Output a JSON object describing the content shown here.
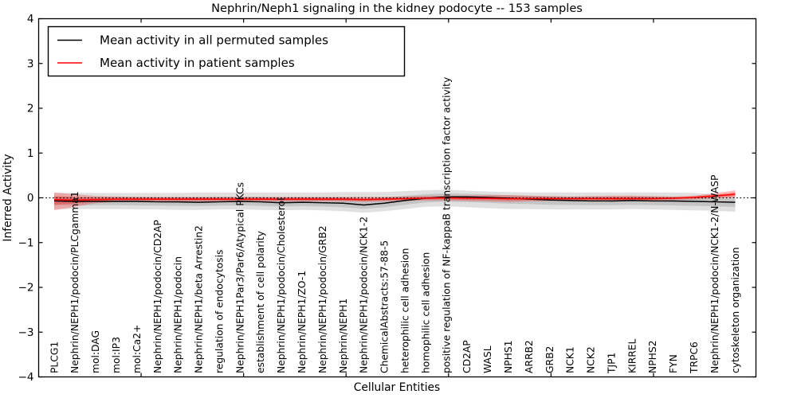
{
  "colors": {
    "background": "#ffffff",
    "frame": "#000000",
    "zero_line": "#000000",
    "permuted_line": "#000000",
    "patient_line": "#ff0000"
  },
  "chart_data": {
    "type": "line",
    "title": "Nephrin/Neph1 signaling in the kidney podocyte -- 153 samples",
    "xlabel": "Cellular Entities",
    "ylabel": "Inferred Activity",
    "ylim": [
      -4,
      4
    ],
    "yticks": [
      -4,
      -3,
      -2,
      -1,
      0,
      1,
      2,
      3,
      4
    ],
    "grid": false,
    "legend_position": "upper left",
    "zero_line": {
      "y": 0,
      "style": "dotted",
      "color": "#000000"
    },
    "categories": [
      "PLCG1",
      "Nephrin/NEPH1/podocin/PLCgamma1",
      "mol:DAG",
      "mol:IP3",
      "mol:Ca2+",
      "Nephrin/NEPH1/podocin/CD2AP",
      "Nephrin/NEPH1/podocin",
      "Nephrin/NEPH1/beta Arrestin2",
      "regulation of endocytosis",
      "Nephrin/NEPH1Par3/Par6/Atypical PKCs",
      "establishment of cell polarity",
      "Nephrin/NEPH1/podocin/Cholesterol",
      "Nephrin/NEPH1/ZO-1",
      "Nephrin/NEPH1/podocin/GRB2",
      "Nephrin/NEPH1",
      "Nephrin/NEPH1/podocin/NCK1-2",
      "ChemicalAbstracts:57-88-5",
      "heterophilic cell adhesion",
      "homophilic cell adhesion",
      "positive regulation of NF-kappaB transcription factor activity",
      "CD2AP",
      "WASL",
      "NPHS1",
      "ARRB2",
      "GRB2",
      "NCK1",
      "NCK2",
      "TJP1",
      "KIRREL",
      "NPHS2",
      "FYN",
      "TRPC6",
      "Nephrin/NEPH1/podocin/NCK1-2/N-WASP",
      "cytoskeleton organization"
    ],
    "series": [
      {
        "name": "Mean activity in all permuted samples",
        "color": "#000000",
        "band_opacity_outer": 0.12,
        "band_opacity_inner": 0.12,
        "values": [
          -0.07,
          -0.08,
          -0.08,
          -0.08,
          -0.08,
          -0.09,
          -0.09,
          -0.1,
          -0.09,
          -0.08,
          -0.09,
          -0.11,
          -0.1,
          -0.11,
          -0.12,
          -0.16,
          -0.12,
          -0.06,
          -0.01,
          0.02,
          0.02,
          0.01,
          -0.01,
          -0.03,
          -0.05,
          -0.06,
          -0.07,
          -0.07,
          -0.06,
          -0.07,
          -0.07,
          -0.08,
          -0.09,
          -0.1
        ],
        "band_upper": [
          0.11,
          0.11,
          0.11,
          0.11,
          0.11,
          0.11,
          0.11,
          0.12,
          0.12,
          0.12,
          0.12,
          0.12,
          0.12,
          0.12,
          0.13,
          0.13,
          0.13,
          0.15,
          0.17,
          0.18,
          0.16,
          0.14,
          0.13,
          0.12,
          0.12,
          0.12,
          0.12,
          0.12,
          0.12,
          0.12,
          0.12,
          0.11,
          0.08,
          0.05
        ],
        "band_lower": [
          -0.25,
          -0.25,
          -0.25,
          -0.25,
          -0.26,
          -0.26,
          -0.27,
          -0.27,
          -0.26,
          -0.26,
          -0.27,
          -0.28,
          -0.27,
          -0.28,
          -0.3,
          -0.33,
          -0.3,
          -0.25,
          -0.2,
          -0.19,
          -0.21,
          -0.23,
          -0.25,
          -0.25,
          -0.26,
          -0.26,
          -0.26,
          -0.26,
          -0.25,
          -0.26,
          -0.27,
          -0.28,
          -0.29,
          -0.31
        ]
      },
      {
        "name": "Mean activity in patient samples",
        "color": "#ff0000",
        "band_opacity_outer": 0.25,
        "band_opacity_inner": 0.28,
        "values": [
          -0.04,
          -0.05,
          -0.04,
          -0.03,
          -0.03,
          -0.03,
          -0.03,
          -0.03,
          -0.03,
          -0.03,
          -0.03,
          -0.03,
          -0.03,
          -0.03,
          -0.03,
          -0.04,
          -0.03,
          -0.02,
          -0.01,
          0.0,
          -0.01,
          -0.01,
          -0.02,
          -0.02,
          -0.02,
          -0.02,
          -0.02,
          -0.02,
          -0.02,
          -0.02,
          -0.01,
          0.01,
          0.04,
          0.08
        ],
        "band_upper": [
          0.12,
          0.08,
          0.04,
          0.03,
          0.02,
          0.02,
          0.02,
          0.02,
          0.02,
          0.02,
          0.02,
          0.02,
          0.02,
          0.02,
          0.02,
          0.02,
          0.02,
          0.03,
          0.04,
          0.05,
          0.05,
          0.06,
          0.06,
          0.05,
          0.04,
          0.03,
          0.04,
          0.05,
          0.05,
          0.04,
          0.03,
          0.05,
          0.1,
          0.17
        ],
        "band_lower": [
          -0.28,
          -0.2,
          -0.12,
          -0.09,
          -0.08,
          -0.08,
          -0.08,
          -0.08,
          -0.08,
          -0.08,
          -0.08,
          -0.08,
          -0.08,
          -0.08,
          -0.08,
          -0.09,
          -0.08,
          -0.07,
          -0.06,
          -0.06,
          -0.07,
          -0.08,
          -0.09,
          -0.08,
          -0.07,
          -0.06,
          -0.06,
          -0.07,
          -0.07,
          -0.06,
          -0.05,
          -0.04,
          -0.01,
          0.0
        ]
      }
    ]
  }
}
